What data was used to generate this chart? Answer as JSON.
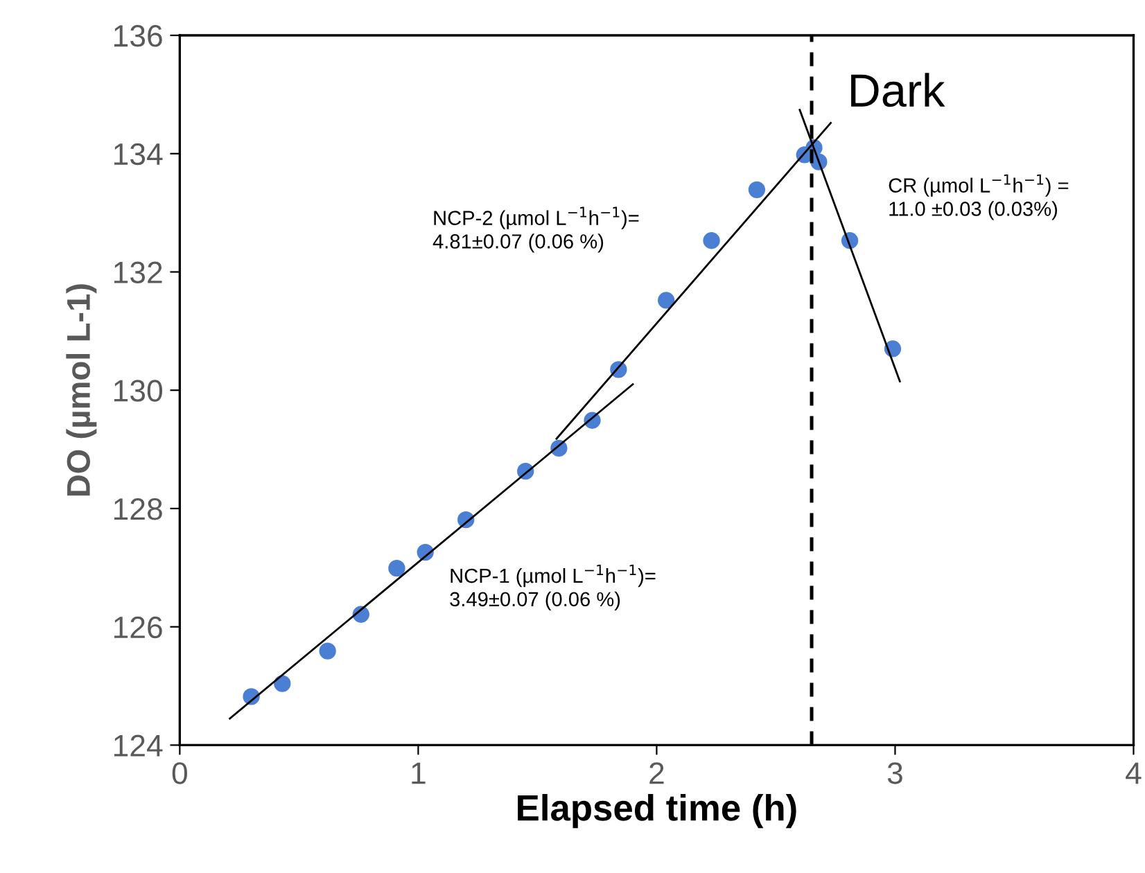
{
  "chart_data": {
    "type": "line",
    "xlabel": "Elapsed time (h)",
    "ylabel": "DO (µmol L-1)",
    "xlim": [
      0,
      4
    ],
    "xticks": [
      0,
      1,
      2,
      3,
      4
    ],
    "ylim": [
      124,
      136
    ],
    "yticks": [
      124,
      126,
      128,
      130,
      132,
      134,
      136
    ],
    "grid": false,
    "series": [
      {
        "type": "scatter",
        "marker": "circle",
        "color": "#4a7fd4",
        "x": [
          0.3,
          0.43,
          0.62,
          0.76,
          0.91,
          1.03,
          1.2,
          1.45,
          1.59,
          1.73,
          1.84,
          2.04,
          2.23,
          2.42,
          2.62,
          2.66,
          2.68,
          2.81,
          2.99
        ],
        "values": [
          124.82,
          125.04,
          125.59,
          126.21,
          126.99,
          127.26,
          127.81,
          128.63,
          129.02,
          129.49,
          130.35,
          131.52,
          132.53,
          133.39,
          133.98,
          134.1,
          133.86,
          132.53,
          130.7
        ]
      },
      {
        "color": "#000000",
        "x": [
          0.21,
          1.9
        ],
        "values": [
          124.45,
          130.1
        ]
      },
      {
        "color": "#000000",
        "x": [
          1.58,
          2.73
        ],
        "values": [
          129.18,
          134.52
        ]
      },
      {
        "color": "#000000",
        "x": [
          2.6,
          3.02
        ],
        "values": [
          134.74,
          130.15
        ]
      }
    ],
    "ref_lines": [
      {
        "axis": "x",
        "value": 2.65,
        "label": "Dark",
        "color": "#000000",
        "line_style": "dashed"
      }
    ],
    "annotations": [
      "NCP-1 (µmol L$^{−1}$h$^{−1}$)=\n3.49±0.07 (0.06 %)",
      "NCP-2 (µmol L$^{−1}$h$^{−1}$)=\n4.81±0.07 (0.06 %)",
      "CR (µmol L$^{−1}$h$^{−1}$) =\n11.0 ±0.03 (0.03%)"
    ]
  }
}
